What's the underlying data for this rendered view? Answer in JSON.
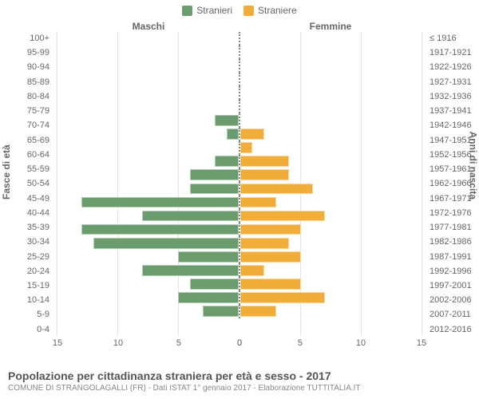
{
  "legend": {
    "male": {
      "label": "Stranieri",
      "color": "#6b9c6e"
    },
    "female": {
      "label": "Straniere",
      "color": "#f0ad3a"
    }
  },
  "panels": {
    "left": "Maschi",
    "right": "Femmine"
  },
  "axis": {
    "left_title": "Fasce di età",
    "right_title": "Anni di nascita",
    "xmax": 15,
    "xtick_step": 5,
    "xticks_left": [
      "15",
      "10",
      "5",
      "0"
    ],
    "xticks_right": [
      "0",
      "5",
      "10",
      "15"
    ],
    "grid_color": "#e6e6e6",
    "background_color": "#ffffff"
  },
  "rows": [
    {
      "age": "100+",
      "birth": "≤ 1916",
      "m": 0,
      "f": 0
    },
    {
      "age": "95-99",
      "birth": "1917-1921",
      "m": 0,
      "f": 0
    },
    {
      "age": "90-94",
      "birth": "1922-1926",
      "m": 0,
      "f": 0
    },
    {
      "age": "85-89",
      "birth": "1927-1931",
      "m": 0,
      "f": 0
    },
    {
      "age": "80-84",
      "birth": "1932-1936",
      "m": 0,
      "f": 0
    },
    {
      "age": "75-79",
      "birth": "1937-1941",
      "m": 0,
      "f": 0
    },
    {
      "age": "70-74",
      "birth": "1942-1946",
      "m": 2,
      "f": 0
    },
    {
      "age": "65-69",
      "birth": "1947-1951",
      "m": 1,
      "f": 2
    },
    {
      "age": "60-64",
      "birth": "1952-1956",
      "m": 0,
      "f": 1
    },
    {
      "age": "55-59",
      "birth": "1957-1961",
      "m": 2,
      "f": 4
    },
    {
      "age": "50-54",
      "birth": "1962-1966",
      "m": 4,
      "f": 4
    },
    {
      "age": "45-49",
      "birth": "1967-1971",
      "m": 4,
      "f": 6
    },
    {
      "age": "40-44",
      "birth": "1972-1976",
      "m": 13,
      "f": 3
    },
    {
      "age": "35-39",
      "birth": "1977-1981",
      "m": 8,
      "f": 7
    },
    {
      "age": "30-34",
      "birth": "1982-1986",
      "m": 13,
      "f": 5
    },
    {
      "age": "25-29",
      "birth": "1987-1991",
      "m": 12,
      "f": 4
    },
    {
      "age": "20-24",
      "birth": "1992-1996",
      "m": 5,
      "f": 5
    },
    {
      "age": "15-19",
      "birth": "1997-2001",
      "m": 8,
      "f": 2
    },
    {
      "age": "10-14",
      "birth": "2002-2006",
      "m": 4,
      "f": 5
    },
    {
      "age": "5-9",
      "birth": "2007-2011",
      "m": 5,
      "f": 7
    },
    {
      "age": "0-4",
      "birth": "2012-2016",
      "m": 3,
      "f": 3
    }
  ],
  "footer": {
    "title": "Popolazione per cittadinanza straniera per età e sesso - 2017",
    "subtitle": "COMUNE DI STRANGOLAGALLI (FR) - Dati ISTAT 1° gennaio 2017 - Elaborazione TUTTITALIA.IT"
  }
}
